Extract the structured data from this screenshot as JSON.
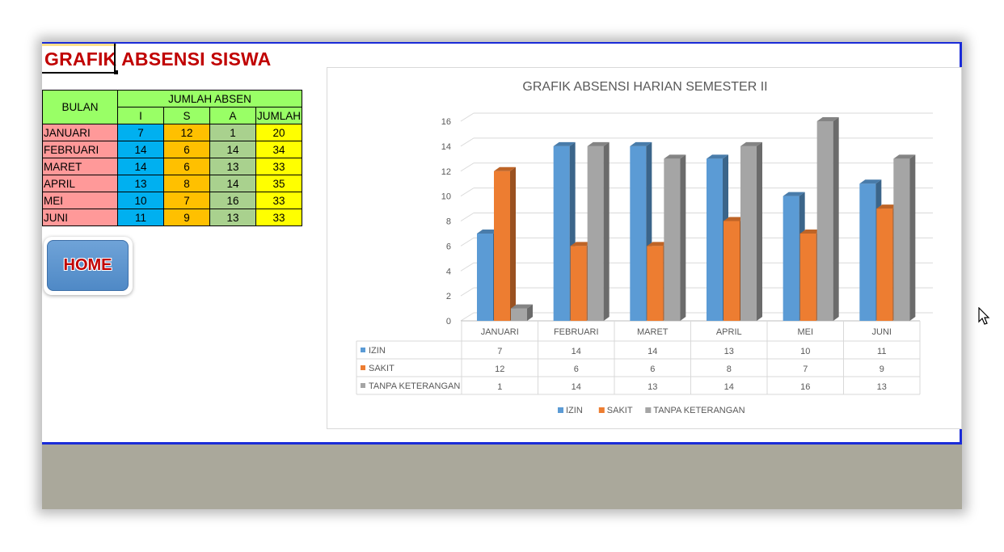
{
  "page_title": "GRAFIK ABSENSI SISWA",
  "table": {
    "bulan_header": "BULAN",
    "jumlah_absen_header": "JUMLAH ABSEN",
    "sub_headers": [
      "I",
      "S",
      "A",
      "JUMLAH"
    ],
    "rows": [
      {
        "month": "JANUARI",
        "i": "7",
        "s": "12",
        "a": "1",
        "jumlah": "20"
      },
      {
        "month": "FEBRUARI",
        "i": "14",
        "s": "6",
        "a": "14",
        "jumlah": "34"
      },
      {
        "month": "MARET",
        "i": "14",
        "s": "6",
        "a": "13",
        "jumlah": "33"
      },
      {
        "month": "APRIL",
        "i": "13",
        "s": "8",
        "a": "14",
        "jumlah": "35"
      },
      {
        "month": "MEI",
        "i": "10",
        "s": "7",
        "a": "16",
        "jumlah": "33"
      },
      {
        "month": "JUNI",
        "i": "11",
        "s": "9",
        "a": "13",
        "jumlah": "33"
      }
    ]
  },
  "home_button": "HOME",
  "colors": {
    "izin": "#5b9bd5",
    "sakit": "#ed7d31",
    "tanpa": "#a5a5a5",
    "title_red": "#c00000"
  },
  "chart_data": {
    "type": "bar",
    "title": "GRAFIK ABSENSI HARIAN SEMESTER II",
    "categories": [
      "JANUARI",
      "FEBRUARI",
      "MARET",
      "APRIL",
      "MEI",
      "JUNI"
    ],
    "series": [
      {
        "name": "IZIN",
        "values": [
          7,
          14,
          14,
          13,
          10,
          11
        ]
      },
      {
        "name": "SAKIT",
        "values": [
          12,
          6,
          6,
          8,
          7,
          9
        ]
      },
      {
        "name": "TANPA KETERANGAN",
        "values": [
          1,
          14,
          13,
          14,
          16,
          13
        ]
      }
    ],
    "ylim": [
      0,
      16
    ],
    "yticks": [
      "0",
      "2",
      "4",
      "6",
      "8",
      "10",
      "12",
      "14",
      "16"
    ],
    "legend": "bottom",
    "data_table": true
  }
}
